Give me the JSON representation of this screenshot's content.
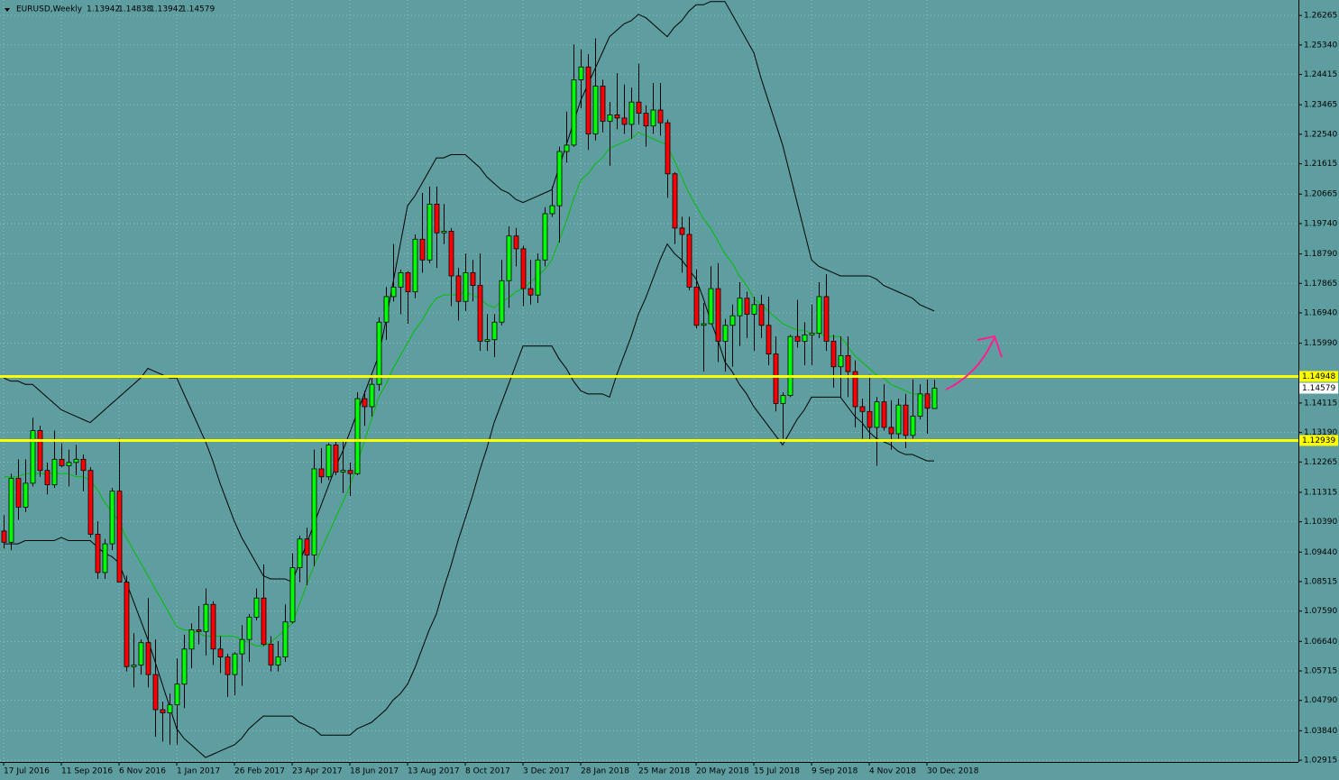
{
  "chart_data": {
    "type": "candlestick",
    "title": "EURUSD,Weekly",
    "categories": [
      "17 Jul 2016",
      null,
      null,
      null,
      null,
      null,
      null,
      null,
      "11 Sep 2016",
      null,
      null,
      null,
      null,
      null,
      null,
      null,
      "6 Nov 2016",
      null,
      null,
      null,
      null,
      null,
      null,
      null,
      "1 Jan 2017",
      null,
      null,
      null,
      null,
      null,
      null,
      null,
      "26 Feb 2017",
      null,
      null,
      null,
      null,
      null,
      null,
      null,
      "23 Apr 2017",
      null,
      null,
      null,
      null,
      null,
      null,
      null,
      "18 Jun 2017",
      null,
      null,
      null,
      null,
      null,
      null,
      null,
      "13 Aug 2017",
      null,
      null,
      null,
      null,
      null,
      null,
      null,
      "8 Oct 2017",
      null,
      null,
      null,
      null,
      null,
      null,
      null,
      "3 Dec 2017",
      null,
      null,
      null,
      null,
      null,
      null,
      null,
      "28 Jan 2018",
      null,
      null,
      null,
      null,
      null,
      null,
      null,
      "25 Mar 2018",
      null,
      null,
      null,
      null,
      null,
      null,
      null,
      "20 May 2018",
      null,
      null,
      null,
      null,
      null,
      null,
      null,
      "15 Jul 2018",
      null,
      null,
      null,
      null,
      null,
      null,
      null,
      "9 Sep 2018",
      null,
      null,
      null,
      null,
      null,
      null,
      null,
      "4 Nov 2018",
      null,
      null,
      null,
      null,
      null,
      null,
      null,
      "30 Dec 2018",
      null
    ],
    "open": [
      1.101,
      1.0975,
      1.1175,
      1.1085,
      1.116,
      1.1325,
      1.12,
      1.1155,
      1.1235,
      1.1215,
      1.1225,
      1.1235,
      1.12,
      1.1,
      1.088,
      1.097,
      1.1135,
      1.085,
      1.0585,
      1.059,
      1.066,
      1.056,
      1.045,
      1.044,
      1.0465,
      1.053,
      1.064,
      1.07,
      1.0695,
      1.078,
      1.064,
      1.0615,
      1.056,
      1.0625,
      1.067,
      1.074,
      1.08,
      1.0655,
      1.059,
      1.0615,
      1.0725,
      1.0895,
      1.0985,
      1.0935,
      1.1205,
      1.118,
      1.128,
      1.1195,
      1.12,
      1.119,
      1.1425,
      1.14,
      1.147,
      1.1665,
      1.1745,
      1.1775,
      1.182,
      1.176,
      1.1925,
      1.186,
      1.2035,
      1.1945,
      1.195,
      1.181,
      1.173,
      1.182,
      1.178,
      1.1605,
      1.161,
      1.1665,
      1.1795,
      1.1935,
      1.1895,
      1.177,
      1.175,
      1.186,
      1.2005,
      1.203,
      1.22,
      1.222,
      1.2425,
      1.2465,
      1.2255,
      1.2405,
      1.2295,
      1.2315,
      1.2305,
      1.2285,
      1.2355,
      1.232,
      1.228,
      1.233,
      1.229,
      1.213,
      1.196,
      1.194,
      1.1775,
      1.1655,
      1.166,
      1.177,
      1.1605,
      1.1655,
      1.1685,
      1.174,
      1.169,
      1.172,
      1.1655,
      1.1565,
      1.141,
      1.1435,
      1.162,
      1.1605,
      1.1625,
      1.163,
      1.1745,
      1.1605,
      1.1525,
      1.156,
      1.151,
      1.14,
      1.1385,
      1.1335,
      1.1415,
      1.1335,
      1.1315,
      1.1405,
      1.131,
      1.137,
      1.144,
      1.13942
    ],
    "high": [
      1.106,
      1.119,
      1.1235,
      1.1235,
      1.1365,
      1.134,
      1.1225,
      1.1325,
      1.1285,
      1.1265,
      1.128,
      1.125,
      1.121,
      1.104,
      1.0985,
      1.1145,
      1.13,
      1.087,
      1.069,
      1.067,
      1.08,
      1.067,
      1.0475,
      1.05,
      1.061,
      1.0685,
      1.072,
      1.0775,
      1.083,
      1.079,
      1.068,
      1.0625,
      1.063,
      1.0715,
      1.075,
      1.083,
      1.0905,
      1.068,
      1.0665,
      1.078,
      1.094,
      1.0995,
      1.102,
      1.1265,
      1.127,
      1.1285,
      1.1295,
      1.1295,
      1.1225,
      1.1445,
      1.145,
      1.149,
      1.168,
      1.1775,
      1.191,
      1.183,
      1.1825,
      1.194,
      1.207,
      1.209,
      1.209,
      1.2035,
      1.196,
      1.1835,
      1.188,
      1.186,
      1.188,
      1.169,
      1.169,
      1.186,
      1.1965,
      1.196,
      1.1905,
      1.186,
      1.188,
      1.2025,
      1.209,
      1.2215,
      1.2325,
      1.2535,
      1.252,
      1.2505,
      1.2555,
      1.2425,
      1.2355,
      1.2445,
      1.241,
      1.24,
      1.2475,
      1.2345,
      1.2415,
      1.2415,
      1.23,
      1.2135,
      1.1995,
      1.1995,
      1.183,
      1.1725,
      1.184,
      1.185,
      1.1675,
      1.172,
      1.179,
      1.176,
      1.1745,
      1.175,
      1.1745,
      1.162,
      1.1445,
      1.1625,
      1.1735,
      1.1665,
      1.172,
      1.179,
      1.1815,
      1.1625,
      1.162,
      1.162,
      1.1545,
      1.1425,
      1.15,
      1.143,
      1.147,
      1.142,
      1.1425,
      1.144,
      1.1485,
      1.147,
      1.1485,
      1.14838
    ],
    "low": [
      1.0955,
      1.095,
      1.1045,
      1.107,
      1.115,
      1.118,
      1.1125,
      1.1145,
      1.121,
      1.115,
      1.1185,
      1.1135,
      1.099,
      1.086,
      1.086,
      1.095,
      1.085,
      1.057,
      1.052,
      1.056,
      1.052,
      1.0365,
      1.035,
      1.034,
      1.034,
      1.0455,
      1.058,
      1.0655,
      1.062,
      1.059,
      1.0565,
      1.049,
      1.0495,
      1.0525,
      1.06,
      1.073,
      1.065,
      1.057,
      1.057,
      1.06,
      1.072,
      1.085,
      1.084,
      1.09,
      1.116,
      1.117,
      1.1185,
      1.113,
      1.112,
      1.1185,
      1.134,
      1.137,
      1.145,
      1.161,
      1.173,
      1.169,
      1.166,
      1.174,
      1.182,
      1.185,
      1.1835,
      1.191,
      1.1715,
      1.167,
      1.17,
      1.173,
      1.1575,
      1.1575,
      1.1555,
      1.1655,
      1.171,
      1.184,
      1.1715,
      1.172,
      1.1725,
      1.184,
      1.1995,
      1.1915,
      1.2165,
      1.2215,
      1.2335,
      1.2205,
      1.2235,
      1.226,
      1.2155,
      1.227,
      1.2255,
      1.224,
      1.2285,
      1.2215,
      1.2255,
      1.225,
      1.2055,
      1.191,
      1.182,
      1.1765,
      1.1645,
      1.151,
      1.166,
      1.154,
      1.151,
      1.1525,
      1.159,
      1.1615,
      1.1575,
      1.1615,
      1.153,
      1.1385,
      1.13,
      1.143,
      1.1585,
      1.153,
      1.153,
      1.1615,
      1.1575,
      1.146,
      1.143,
      1.143,
      1.1335,
      1.13,
      1.129,
      1.1215,
      1.1325,
      1.1265,
      1.13,
      1.127,
      1.13,
      1.136,
      1.1315,
      1.13942
    ],
    "close": [
      1.0975,
      1.1175,
      1.1085,
      1.116,
      1.1325,
      1.12,
      1.1155,
      1.1235,
      1.1215,
      1.1225,
      1.1235,
      1.12,
      1.1,
      1.088,
      1.097,
      1.1135,
      1.085,
      1.0585,
      1.059,
      1.066,
      1.056,
      1.045,
      1.044,
      1.0465,
      1.053,
      1.064,
      1.07,
      1.0695,
      1.078,
      1.064,
      1.0615,
      1.056,
      1.0625,
      1.067,
      1.074,
      1.08,
      1.0655,
      1.059,
      1.0615,
      1.0725,
      1.0895,
      1.0985,
      1.0935,
      1.1205,
      1.118,
      1.128,
      1.1195,
      1.12,
      1.119,
      1.1425,
      1.14,
      1.147,
      1.1665,
      1.1745,
      1.1775,
      1.182,
      1.176,
      1.1925,
      1.186,
      1.2035,
      1.1945,
      1.195,
      1.181,
      1.173,
      1.182,
      1.178,
      1.1605,
      1.161,
      1.1665,
      1.1795,
      1.1935,
      1.1895,
      1.177,
      1.175,
      1.186,
      1.2005,
      1.203,
      1.22,
      1.222,
      1.2425,
      1.2465,
      1.2255,
      1.2405,
      1.2295,
      1.2315,
      1.2305,
      1.2285,
      1.2355,
      1.232,
      1.228,
      1.233,
      1.229,
      1.213,
      1.196,
      1.194,
      1.1775,
      1.1655,
      1.166,
      1.177,
      1.1605,
      1.1655,
      1.1685,
      1.174,
      1.169,
      1.172,
      1.1655,
      1.1565,
      1.141,
      1.1435,
      1.162,
      1.1605,
      1.1625,
      1.163,
      1.1745,
      1.1605,
      1.1525,
      1.156,
      1.151,
      1.14,
      1.1385,
      1.1335,
      1.1415,
      1.1335,
      1.1315,
      1.1405,
      1.131,
      1.137,
      1.144,
      1.1395,
      1.14579
    ],
    "up_color": "#00ff00",
    "down_color": "#ff0000",
    "series": [
      {
        "color": "#000000",
        "values": [
          1.149,
          1.148,
          1.148,
          1.147,
          1.147,
          1.145,
          1.143,
          1.141,
          1.139,
          1.138,
          1.137,
          1.136,
          1.135,
          1.137,
          1.139,
          1.141,
          1.143,
          1.145,
          1.147,
          1.149,
          1.152,
          1.151,
          1.15,
          1.149,
          1.149,
          1.144,
          1.139,
          1.134,
          1.129,
          1.123,
          1.116,
          1.11,
          1.104,
          1.099,
          1.095,
          1.091,
          1.087,
          1.086,
          1.086,
          1.086,
          1.085,
          1.091,
          1.097,
          1.103,
          1.109,
          1.115,
          1.121,
          1.126,
          1.132,
          1.138,
          1.144,
          1.15,
          1.156,
          1.167,
          1.179,
          1.191,
          1.203,
          1.206,
          1.21,
          1.214,
          1.218,
          1.218,
          1.219,
          1.219,
          1.219,
          1.217,
          1.215,
          1.212,
          1.21,
          1.208,
          1.207,
          1.205,
          1.204,
          1.205,
          1.206,
          1.207,
          1.208,
          1.215,
          1.222,
          1.229,
          1.236,
          1.241,
          1.246,
          1.251,
          1.256,
          1.258,
          1.26,
          1.261,
          1.263,
          1.262,
          1.26,
          1.258,
          1.256,
          1.259,
          1.261,
          1.264,
          1.266,
          1.266,
          1.267,
          1.267,
          1.267,
          1.263,
          1.259,
          1.255,
          1.251,
          1.243,
          1.236,
          1.229,
          1.222,
          1.213,
          1.204,
          1.195,
          1.186,
          1.184,
          1.183,
          1.182,
          1.181,
          1.181,
          1.181,
          1.181,
          1.181,
          1.18,
          1.178,
          1.177,
          1.176,
          1.175,
          1.174,
          1.172,
          1.171,
          1.17
        ]
      },
      {
        "color": "#00c000",
        "values": [
          1.118,
          1.118,
          1.118,
          1.119,
          1.119,
          1.119,
          1.119,
          1.119,
          1.119,
          1.119,
          1.118,
          1.118,
          1.117,
          1.114,
          1.11,
          1.107,
          1.104,
          1.099,
          1.095,
          1.091,
          1.087,
          1.083,
          1.079,
          1.075,
          1.071,
          1.07,
          1.07,
          1.069,
          1.068,
          1.068,
          1.068,
          1.068,
          1.068,
          1.067,
          1.066,
          1.065,
          1.065,
          1.066,
          1.068,
          1.07,
          1.072,
          1.078,
          1.084,
          1.09,
          1.095,
          1.1,
          1.105,
          1.11,
          1.115,
          1.122,
          1.129,
          1.136,
          1.143,
          1.147,
          1.152,
          1.156,
          1.16,
          1.164,
          1.167,
          1.171,
          1.174,
          1.175,
          1.175,
          1.175,
          1.176,
          1.175,
          1.174,
          1.172,
          1.171,
          1.173,
          1.174,
          1.176,
          1.177,
          1.179,
          1.181,
          1.183,
          1.186,
          1.192,
          1.198,
          1.205,
          1.211,
          1.213,
          1.216,
          1.218,
          1.221,
          1.222,
          1.223,
          1.224,
          1.226,
          1.225,
          1.224,
          1.223,
          1.222,
          1.217,
          1.212,
          1.207,
          1.203,
          1.199,
          1.196,
          1.192,
          1.188,
          1.185,
          1.181,
          1.178,
          1.174,
          1.172,
          1.17,
          1.168,
          1.166,
          1.165,
          1.164,
          1.164,
          1.163,
          1.163,
          1.162,
          1.162,
          1.162,
          1.159,
          1.156,
          1.154,
          1.152,
          1.15,
          1.149,
          1.147,
          1.146,
          1.145,
          1.144,
          1.144,
          1.143,
          1.143
        ]
      },
      {
        "color": "#000000",
        "values": [
          1.097,
          1.097,
          1.097,
          1.098,
          1.098,
          1.098,
          1.098,
          1.098,
          1.099,
          1.098,
          1.098,
          1.098,
          1.098,
          1.096,
          1.094,
          1.093,
          1.091,
          1.085,
          1.079,
          1.073,
          1.067,
          1.06,
          1.053,
          1.046,
          1.039,
          1.036,
          1.034,
          1.032,
          1.03,
          1.031,
          1.032,
          1.033,
          1.034,
          1.036,
          1.039,
          1.041,
          1.043,
          1.043,
          1.043,
          1.043,
          1.043,
          1.041,
          1.04,
          1.039,
          1.037,
          1.037,
          1.037,
          1.037,
          1.037,
          1.039,
          1.04,
          1.041,
          1.043,
          1.045,
          1.048,
          1.05,
          1.053,
          1.058,
          1.064,
          1.07,
          1.075,
          1.083,
          1.09,
          1.098,
          1.105,
          1.112,
          1.12,
          1.127,
          1.135,
          1.141,
          1.147,
          1.153,
          1.159,
          1.159,
          1.159,
          1.159,
          1.159,
          1.155,
          1.152,
          1.148,
          1.145,
          1.144,
          1.144,
          1.144,
          1.143,
          1.15,
          1.156,
          1.162,
          1.169,
          1.174,
          1.18,
          1.186,
          1.191,
          1.188,
          1.186,
          1.183,
          1.18,
          1.174,
          1.167,
          1.161,
          1.154,
          1.151,
          1.147,
          1.144,
          1.14,
          1.137,
          1.134,
          1.131,
          1.128,
          1.132,
          1.136,
          1.139,
          1.143,
          1.143,
          1.143,
          1.143,
          1.143,
          1.14,
          1.137,
          1.135,
          1.132,
          1.13,
          1.129,
          1.128,
          1.126,
          1.125,
          1.125,
          1.124,
          1.123,
          1.123
        ]
      }
    ],
    "levels": [
      {
        "value": 1.14948,
        "color": "#ffff00"
      },
      {
        "value": 1.12939,
        "color": "#ffff00"
      }
    ],
    "ylim": [
      1.0286,
      1.2675
    ],
    "yticks": [
      1.26265,
      {
        "value": 1.2534,
        "label": "1.25340"
      },
      1.24415,
      1.23465,
      {
        "value": 1.2254,
        "label": "1.22540"
      },
      1.21615,
      1.20665,
      {
        "value": 1.1974,
        "label": "1.19740"
      },
      {
        "value": 1.1879,
        "label": "1.18790"
      },
      1.17865,
      {
        "value": 1.1694,
        "label": "1.16940"
      },
      {
        "value": 1.1599,
        "label": "1.15990"
      },
      1.14115,
      {
        "value": 1.1319,
        "label": "1.13190"
      },
      1.12265,
      1.11315,
      {
        "value": 1.1039,
        "label": "1.10390"
      },
      {
        "value": 1.0944,
        "label": "1.09440"
      },
      1.08515,
      {
        "value": 1.0759,
        "label": "1.07590"
      },
      {
        "value": 1.0664,
        "label": "1.06640"
      },
      1.05715,
      {
        "value": 1.0479,
        "label": "1.04790"
      },
      {
        "value": 1.0384,
        "label": "1.03840"
      },
      1.02915
    ],
    "grid": true,
    "background": "#5f9ea0"
  }
}
